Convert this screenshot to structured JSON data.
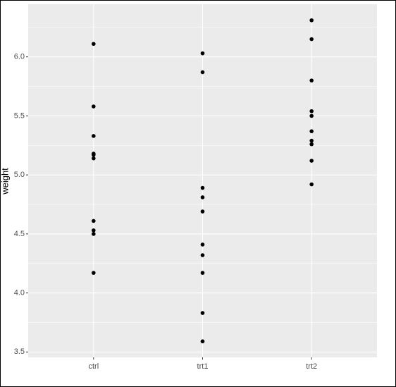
{
  "chart_data": {
    "type": "strip",
    "y_label": "weight",
    "categories": [
      "ctrl",
      "trt1",
      "trt2"
    ],
    "values": [
      [
        4.17,
        5.58,
        5.18,
        6.11,
        4.5,
        4.61,
        5.17,
        4.53,
        5.33,
        5.14
      ],
      [
        4.81,
        4.17,
        4.41,
        3.59,
        5.87,
        3.83,
        6.03,
        4.89,
        4.32,
        4.69
      ],
      [
        6.31,
        5.12,
        5.54,
        5.5,
        5.37,
        5.29,
        4.92,
        6.15,
        5.8,
        5.26
      ]
    ],
    "color": "#000000",
    "ylim": [
      3.454,
      6.446
    ],
    "yticks": [
      3.5,
      {
        "value": 4,
        "label": "4.0"
      },
      4.5,
      {
        "value": 5,
        "label": "5.0"
      },
      5.5,
      {
        "value": 6,
        "label": "6.0"
      }
    ],
    "grid": true
  }
}
